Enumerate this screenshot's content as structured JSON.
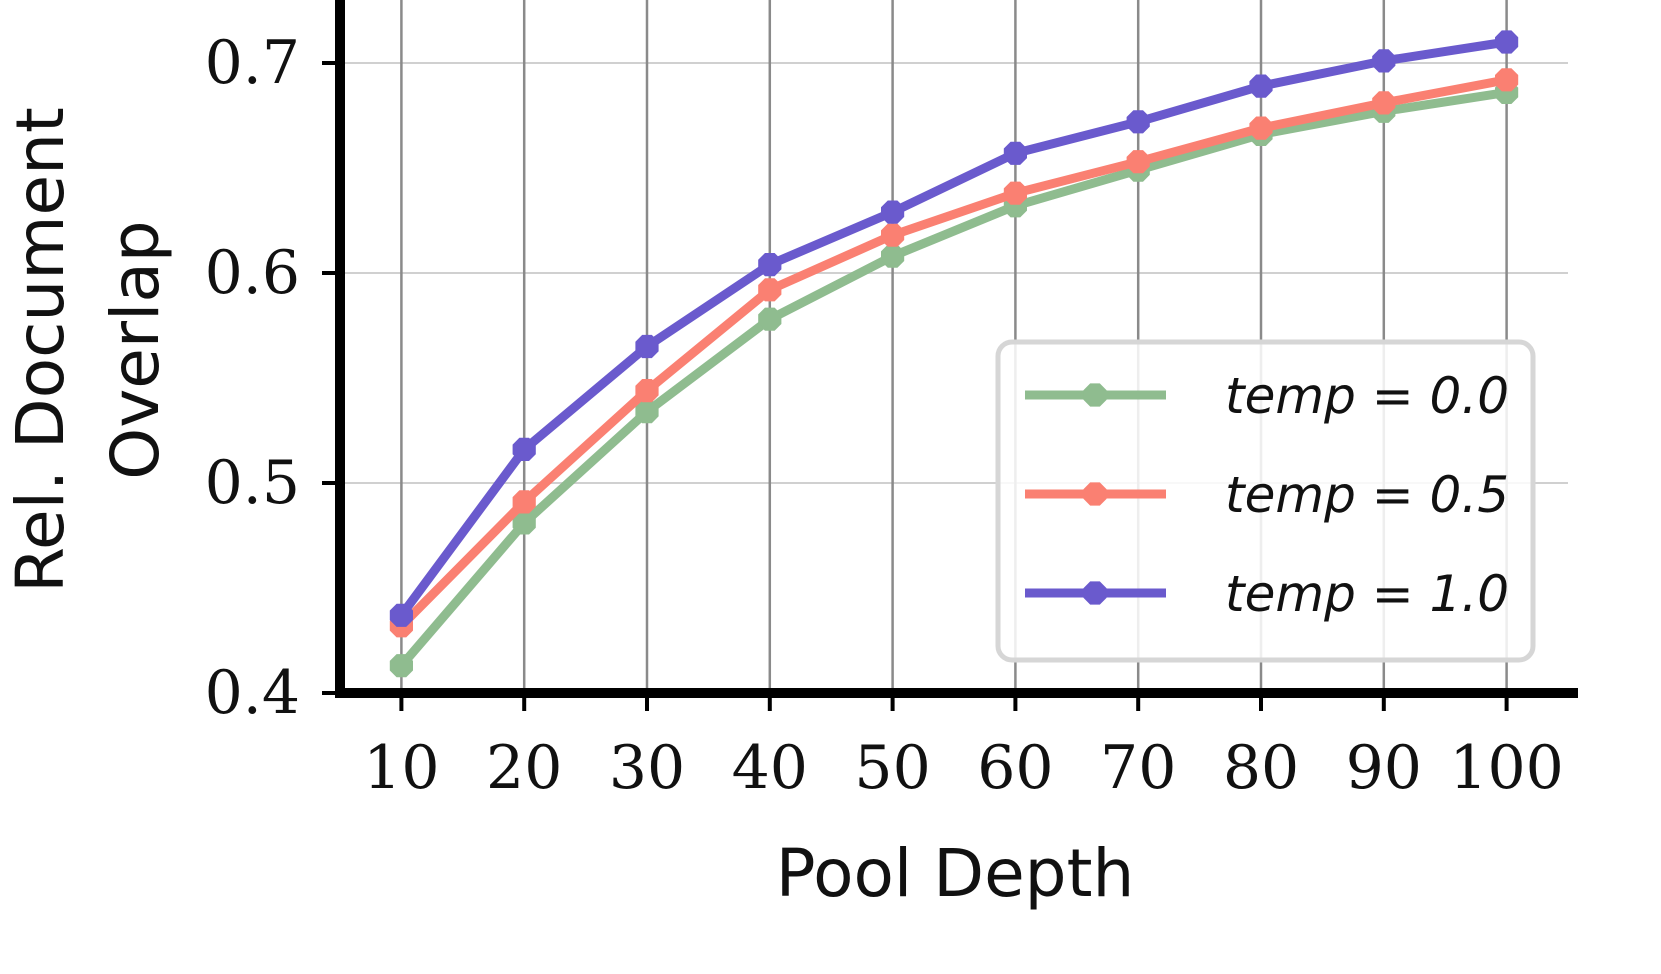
{
  "chart_data": {
    "type": "line",
    "xlabel": "Pool Depth",
    "ylabel_line1": "Rel. Document",
    "ylabel_line2": "Overlap",
    "x": [
      10,
      20,
      30,
      40,
      50,
      60,
      70,
      80,
      90,
      100
    ],
    "xlim": [
      5,
      105
    ],
    "ylim": [
      0.4,
      0.73
    ],
    "yticks": [
      0.4,
      0.5,
      0.6,
      0.7
    ],
    "ytick_labels": [
      "0.4",
      "0.5",
      "0.6",
      "0.7"
    ],
    "xtick_labels": [
      "10",
      "20",
      "30",
      "40",
      "50",
      "60",
      "70",
      "80",
      "90",
      "100"
    ],
    "grid": true,
    "legend_position": "lower-right",
    "series": [
      {
        "name": "temp = 0.0",
        "color": "#8fbc8f",
        "values": [
          0.413,
          0.481,
          0.534,
          0.578,
          0.608,
          0.632,
          0.649,
          0.666,
          0.677,
          0.686
        ]
      },
      {
        "name": "temp = 0.5",
        "color": "#fa8072",
        "values": [
          0.432,
          0.491,
          0.544,
          0.592,
          0.618,
          0.638,
          0.653,
          0.669,
          0.681,
          0.692
        ]
      },
      {
        "name": "temp = 1.0",
        "color": "#6a5acd",
        "values": [
          0.437,
          0.516,
          0.565,
          0.604,
          0.629,
          0.657,
          0.672,
          0.689,
          0.701,
          0.71
        ]
      }
    ]
  }
}
